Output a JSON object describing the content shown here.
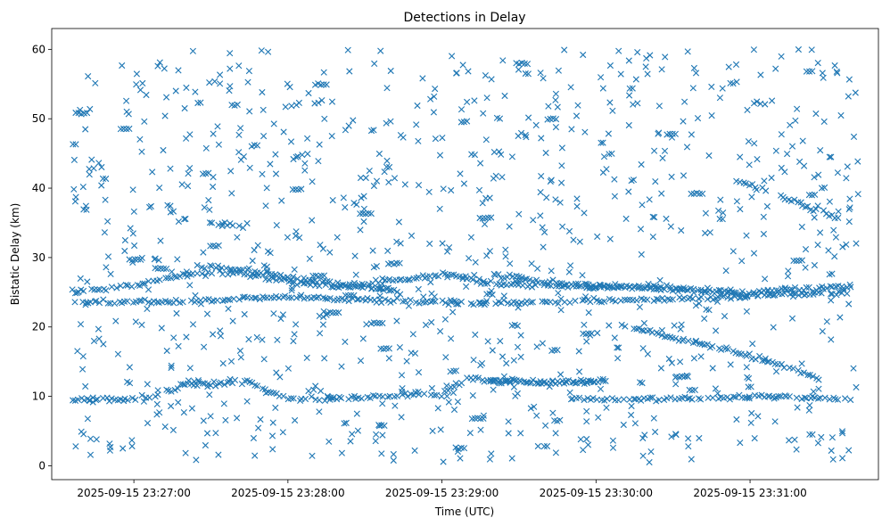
{
  "chart_data": {
    "type": "scatter",
    "title": "Detections in Delay",
    "xlabel": "Time (UTC)",
    "ylabel": "Bistatic Delay (km)",
    "xlim": [
      "2025-09-15 23:26:28",
      "2025-09-15 23:31:50"
    ],
    "ylim": [
      -2,
      63
    ],
    "x_ticks": [
      "2025-09-15 23:27:00",
      "2025-09-15 23:28:00",
      "2025-09-15 23:29:00",
      "2025-09-15 23:30:00",
      "2025-09-15 23:31:00"
    ],
    "y_ticks": [
      0,
      10,
      20,
      30,
      40,
      50,
      60
    ],
    "marker": "x",
    "color": "#1f77b4",
    "grid": false,
    "tracks": [
      {
        "points": [
          [
            "2025-09-15 23:26:36",
            25.0
          ],
          [
            "2025-09-15 23:27:00",
            26.0
          ],
          [
            "2025-09-15 23:27:20",
            27.6
          ],
          [
            "2025-09-15 23:27:40",
            27.8
          ],
          [
            "2025-09-15 23:28:00",
            26.6
          ],
          [
            "2025-09-15 23:28:20",
            25.8
          ],
          [
            "2025-09-15 23:28:40",
            26.6
          ],
          [
            "2025-09-15 23:29:00",
            27.6
          ],
          [
            "2025-09-15 23:29:20",
            26.2
          ],
          [
            "2025-09-15 23:29:40",
            26.0
          ],
          [
            "2025-09-15 23:30:00",
            25.8
          ],
          [
            "2025-09-15 23:30:20",
            25.5
          ],
          [
            "2025-09-15 23:30:40",
            25.2
          ],
          [
            "2025-09-15 23:31:00",
            25.0
          ],
          [
            "2025-09-15 23:31:20",
            25.5
          ],
          [
            "2025-09-15 23:31:40",
            25.8
          ]
        ]
      },
      {
        "points": [
          [
            "2025-09-15 23:26:40",
            23.6
          ],
          [
            "2025-09-15 23:27:20",
            23.6
          ],
          [
            "2025-09-15 23:27:40",
            24.0
          ],
          [
            "2025-09-15 23:28:00",
            24.3
          ],
          [
            "2025-09-15 23:28:20",
            24.0
          ],
          [
            "2025-09-15 23:28:40",
            23.8
          ],
          [
            "2025-09-15 23:29:00",
            23.5
          ],
          [
            "2025-09-15 23:29:30",
            23.5
          ],
          [
            "2025-09-15 23:30:00",
            23.8
          ],
          [
            "2025-09-15 23:30:30",
            24.0
          ],
          [
            "2025-09-15 23:31:00",
            24.5
          ],
          [
            "2025-09-15 23:31:40",
            25.0
          ]
        ]
      },
      {
        "points": [
          [
            "2025-09-15 23:27:25",
            28.8
          ],
          [
            "2025-09-15 23:27:45",
            28.0
          ],
          [
            "2025-09-15 23:28:05",
            27.0
          ],
          [
            "2025-09-15 23:28:25",
            26.0
          ],
          [
            "2025-09-15 23:28:45",
            25.0
          ]
        ]
      },
      {
        "points": [
          [
            "2025-09-15 23:29:20",
            27.5
          ],
          [
            "2025-09-15 23:29:40",
            26.5
          ],
          [
            "2025-09-15 23:30:00",
            26.0
          ],
          [
            "2025-09-15 23:30:20",
            25.8
          ],
          [
            "2025-09-15 23:30:40",
            25.5
          ],
          [
            "2025-09-15 23:31:00",
            24.5
          ]
        ]
      },
      {
        "points": [
          [
            "2025-09-15 23:26:36",
            9.6
          ],
          [
            "2025-09-15 23:27:05",
            9.6
          ],
          [
            "2025-09-15 23:27:20",
            11.8
          ],
          [
            "2025-09-15 23:27:45",
            12.0
          ],
          [
            "2025-09-15 23:28:00",
            9.6
          ],
          [
            "2025-09-15 23:28:30",
            9.8
          ],
          [
            "2025-09-15 23:29:00",
            10.3
          ],
          [
            "2025-09-15 23:29:10",
            12.5
          ],
          [
            "2025-09-15 23:29:40",
            12.0
          ],
          [
            "2025-09-15 23:30:00",
            12.0
          ]
        ]
      },
      {
        "points": [
          [
            "2025-09-15 23:29:50",
            9.6
          ],
          [
            "2025-09-15 23:30:20",
            9.6
          ],
          [
            "2025-09-15 23:30:50",
            9.8
          ],
          [
            "2025-09-15 23:31:10",
            10.0
          ],
          [
            "2025-09-15 23:31:40",
            9.5
          ]
        ]
      },
      {
        "points": [
          [
            "2025-09-15 23:30:10",
            20.3
          ],
          [
            "2025-09-15 23:30:30",
            18.5
          ],
          [
            "2025-09-15 23:30:50",
            16.8
          ],
          [
            "2025-09-15 23:31:10",
            14.8
          ],
          [
            "2025-09-15 23:31:30",
            12.0
          ]
        ]
      },
      {
        "points": [
          [
            "2025-09-15 23:30:55",
            41.0
          ],
          [
            "2025-09-15 23:31:15",
            38.5
          ],
          [
            "2025-09-15 23:31:35",
            35.5
          ]
        ]
      },
      {
        "points": [
          [
            "2025-09-15 23:27:30",
            34.8
          ],
          [
            "2025-09-15 23:27:45",
            34.6
          ]
        ]
      },
      {
        "points": [
          [
            "2025-09-15 23:29:20",
            12.2
          ],
          [
            "2025-09-15 23:29:45",
            12.2
          ],
          [
            "2025-09-15 23:30:05",
            12.2
          ]
        ]
      }
    ],
    "y_bounds": [
      0.5,
      60.0
    ]
  }
}
